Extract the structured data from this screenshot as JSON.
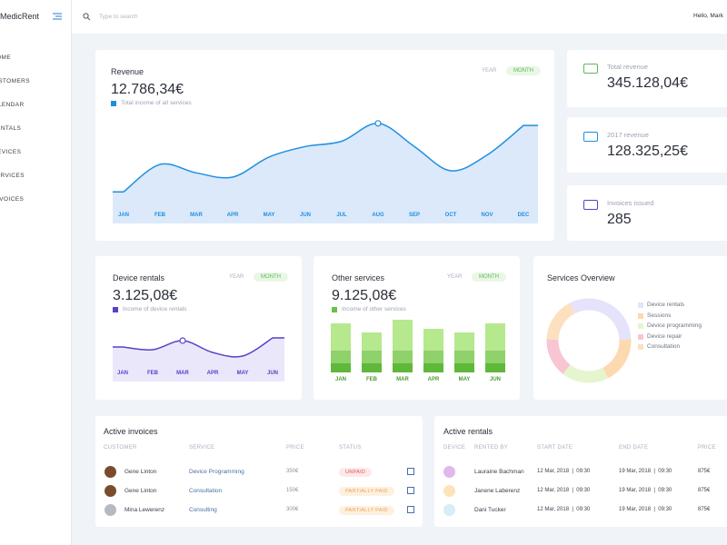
{
  "sidebar": {
    "brand": "MedicRent",
    "nav": [
      "HOME",
      "CUSTOMERS",
      "CALENDAR",
      "RENTALS",
      "DEVICES",
      "SERVICES",
      "INVOICES"
    ]
  },
  "topbar": {
    "search_placeholder": "Type to search",
    "greeting": "Hello, Mark"
  },
  "revenue": {
    "title": "Revenue",
    "toggle": [
      "YEAR",
      "MONTH"
    ],
    "amount": "12.786,34€",
    "legend": "Total income of all services",
    "color": "#1e8fe0",
    "chart": {
      "type": "line",
      "categories": [
        "JAN",
        "FEB",
        "MAR",
        "APR",
        "MAY",
        "JUN",
        "JUL",
        "AUG",
        "SEP",
        "OCT",
        "NOV",
        "DEC"
      ],
      "values": [
        30,
        56,
        48,
        44,
        63,
        73,
        78,
        95,
        73,
        50,
        65,
        93
      ],
      "ylim": [
        0,
        100
      ]
    }
  },
  "stats": [
    {
      "label": "Total revenue",
      "value": "345.128,04€"
    },
    {
      "label": "2017 revenue",
      "value": "128.325,25€"
    },
    {
      "label": "Invoices issued",
      "value": "285"
    }
  ],
  "device_rentals": {
    "title": "Device rentals",
    "toggle": [
      "YEAR",
      "MONTH"
    ],
    "amount": "3.125,08€",
    "legend": "Income of device rentals",
    "color": "#5b3fc7",
    "chart": {
      "type": "line",
      "categories": [
        "JAN",
        "FEB",
        "MAR",
        "APR",
        "MAY",
        "JUN"
      ],
      "values": [
        38,
        35,
        45,
        32,
        28,
        48
      ],
      "ylim": [
        0,
        65
      ]
    }
  },
  "other_services": {
    "title": "Other services",
    "toggle": [
      "YEAR",
      "MONTH"
    ],
    "amount": "9.125,08€",
    "legend": "Income of other services",
    "color": "#6cc04a",
    "chart": {
      "type": "bar",
      "categories": [
        "JAN",
        "FEB",
        "MAR",
        "APR",
        "MAY",
        "JUN"
      ],
      "ylim": [
        0,
        60
      ],
      "series": [
        {
          "color": "#5fb83a",
          "values": [
            10,
            10,
            10,
            10,
            10,
            10
          ]
        },
        {
          "color": "#8fd16a",
          "values": [
            14,
            14,
            14,
            14,
            14,
            14
          ]
        },
        {
          "color": "#b6e88e",
          "values": [
            30,
            20,
            34,
            24,
            20,
            30
          ]
        }
      ]
    }
  },
  "services_overview": {
    "title": "Services Overview",
    "chart": {
      "type": "pie",
      "categories": [
        "Device rentals",
        "Sessions",
        "Device programming",
        "Device repair",
        "Consultation"
      ],
      "values": [
        32,
        18,
        18,
        15,
        17
      ],
      "colors": [
        "#e4e3fb",
        "#fdd9b0",
        "#e4f5cf",
        "#f9c5d2",
        "#fde0c0"
      ]
    }
  },
  "active_invoices": {
    "title": "Active invoices",
    "columns": [
      "CUSTOMER",
      "SERVICE",
      "PRICE",
      "STATUS"
    ],
    "rows": [
      [
        "Gene Linton",
        "Device Programming",
        "350€",
        "UNPAID"
      ],
      [
        "Gene Linton",
        "Consultation",
        "150€",
        "PARTIALLY PAID"
      ],
      [
        "Mina Lewerenz",
        "Consulting",
        "300€",
        "PARTIALLY PAID"
      ]
    ]
  },
  "active_rentals": {
    "title": "Active rentals",
    "columns": [
      "DEVICE",
      "RENTED BY",
      "START DATE",
      "END DATE",
      "PRICE"
    ],
    "rows": [
      [
        "Lauraine Bachman",
        "12 Mar, 2018  |  09:30",
        "19 Mar, 2018  |  09:30",
        "875€"
      ],
      [
        "Janene Laberenz",
        "12 Mar, 2018  |  09:30",
        "19 Mar, 2018  |  09:30",
        "875€"
      ],
      [
        "Dani Tucker",
        "12 Mar, 2018  |  09:30",
        "19 Mar, 2018  |  09:30",
        "875€"
      ]
    ],
    "device_colors": [
      "#e0b8ee",
      "#fde3b8",
      "#d6eef5"
    ]
  }
}
